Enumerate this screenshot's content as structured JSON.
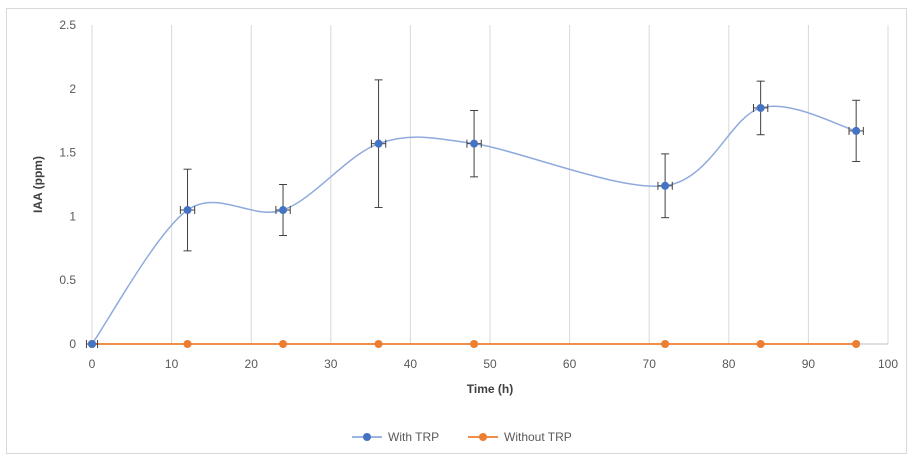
{
  "chart_data": {
    "type": "scatter",
    "title": "",
    "xlabel": "Time (h)",
    "ylabel": "IAA (ppm)",
    "xlim": [
      0,
      100
    ],
    "ylim": [
      0,
      2.5
    ],
    "xticks": [
      "0",
      "10",
      "20",
      "30",
      "40",
      "50",
      "60",
      "70",
      "80",
      "90",
      "100"
    ],
    "yticks": [
      "0",
      "0.5",
      "1",
      "1.5",
      "2",
      "2.5"
    ],
    "grid": "vertical",
    "legend_position": "bottom",
    "series": [
      {
        "name": "With TRP",
        "color": "#4472c4",
        "line_color": "#8faadc",
        "smooth": true,
        "x": [
          0,
          12,
          24,
          36,
          48,
          72,
          84,
          96
        ],
        "y": [
          0,
          1.05,
          1.05,
          1.57,
          1.57,
          1.24,
          1.85,
          1.67
        ],
        "y_error": [
          0,
          0.32,
          0.2,
          0.5,
          0.26,
          0.25,
          0.21,
          0.24
        ],
        "x_error": [
          0.7,
          0.9,
          0.9,
          0.9,
          0.9,
          0.9,
          0.9,
          0.9
        ]
      },
      {
        "name": "Without TRP",
        "color": "#ed7d31",
        "line_color": "#ed7d31",
        "smooth": false,
        "x": [
          0,
          12,
          24,
          36,
          48,
          72,
          84,
          96
        ],
        "y": [
          0,
          0,
          0,
          0,
          0,
          0,
          0,
          0
        ]
      }
    ]
  }
}
